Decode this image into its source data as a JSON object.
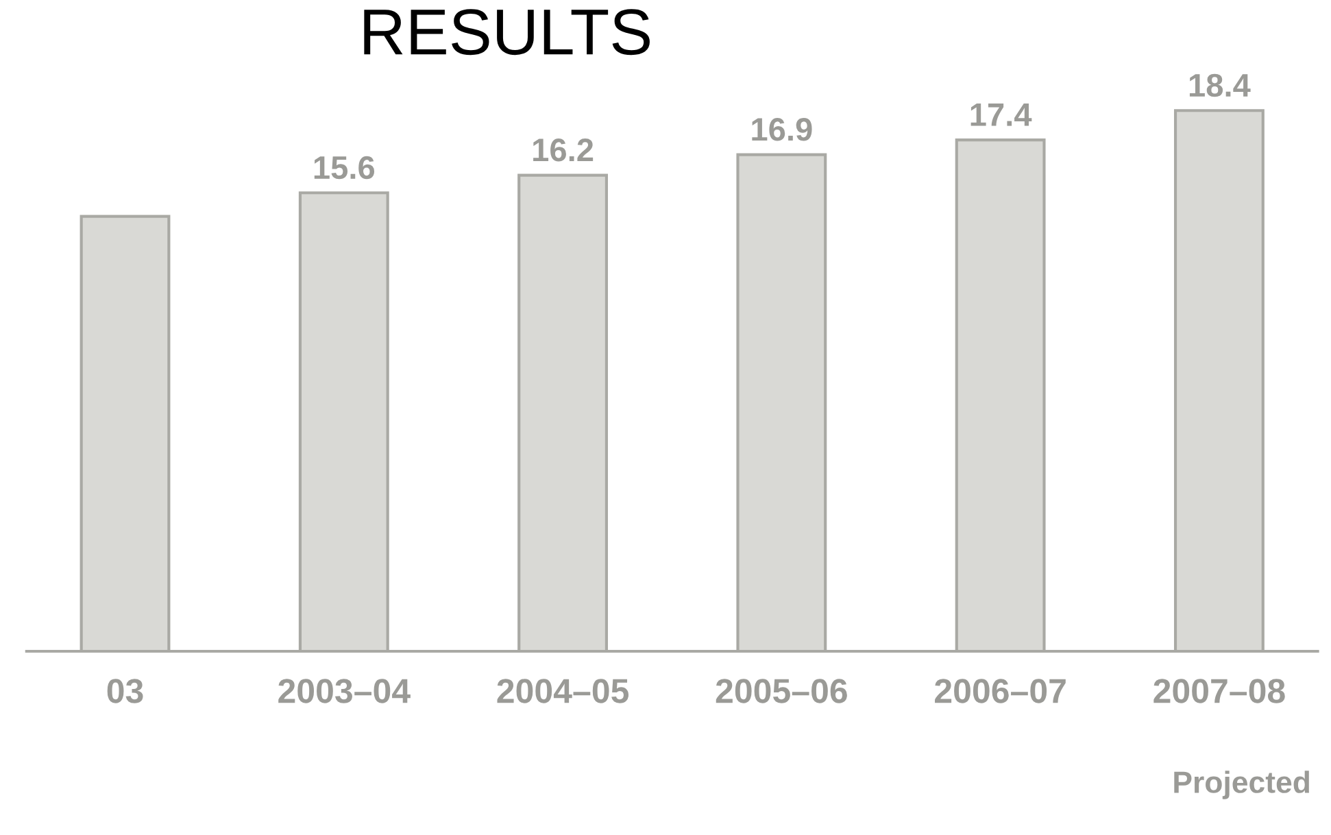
{
  "chart_data": {
    "type": "bar",
    "title": "RESULTS",
    "categories": [
      "03",
      "2003–04",
      "2004–05",
      "2005–06",
      "2006–07",
      "2007–08"
    ],
    "values": [
      14.8,
      15.6,
      16.2,
      16.9,
      17.4,
      18.4
    ],
    "value_labels": [
      null,
      "15.6",
      "16.2",
      "16.9",
      "17.4",
      "18.4"
    ],
    "color": "#d9d9d5",
    "tick_labels": "x",
    "grid": false,
    "legend": false,
    "annotations": [
      "Projected"
    ]
  }
}
